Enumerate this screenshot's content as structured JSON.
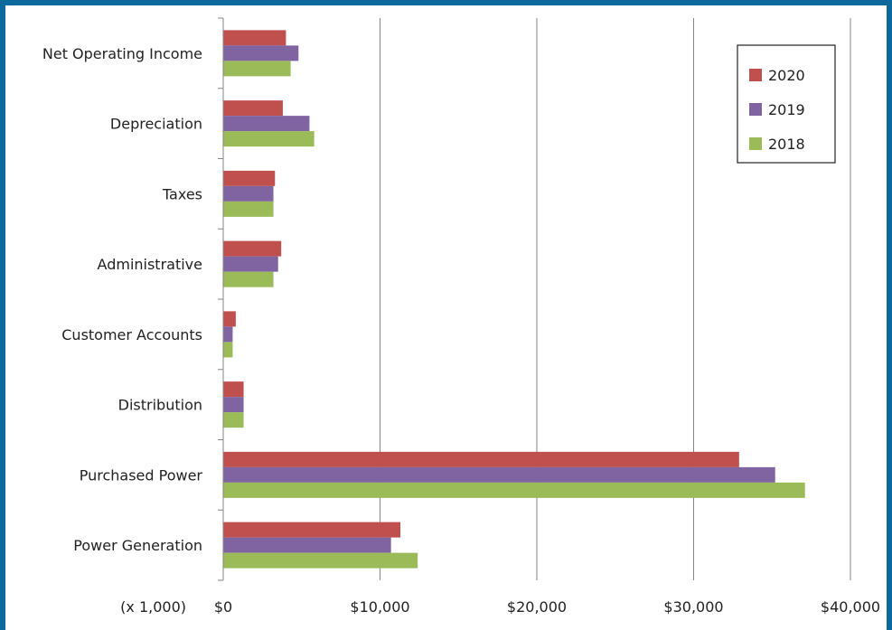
{
  "chart_data": {
    "type": "bar",
    "orientation": "horizontal",
    "categories": [
      "Net Operating Income",
      "Depreciation",
      "Taxes",
      "Administrative",
      "Customer Accounts",
      "Distribution",
      "Purchased Power",
      "Power Generation"
    ],
    "series": [
      {
        "name": "2020",
        "color": "#c0504d",
        "values": [
          4000,
          3800,
          3300,
          3700,
          800,
          1300,
          32900,
          11300
        ]
      },
      {
        "name": "2019",
        "color": "#8064a2",
        "values": [
          4800,
          5500,
          3200,
          3500,
          600,
          1300,
          35200,
          10700
        ]
      },
      {
        "name": "2018",
        "color": "#9bbb59",
        "values": [
          4300,
          5800,
          3200,
          3200,
          600,
          1300,
          37100,
          12400
        ]
      }
    ],
    "xlim": [
      0,
      40000
    ],
    "x_ticks": [
      "$0",
      "$10,000",
      "$20,000",
      "$30,000",
      "$40,000"
    ],
    "x_unit_label": "(x 1,000)",
    "gridlines": "vertical",
    "legend_position": "top-right"
  },
  "colors": {
    "frame_border": "#0b6a9b",
    "gridline": "#868686",
    "axis": "#868686"
  }
}
